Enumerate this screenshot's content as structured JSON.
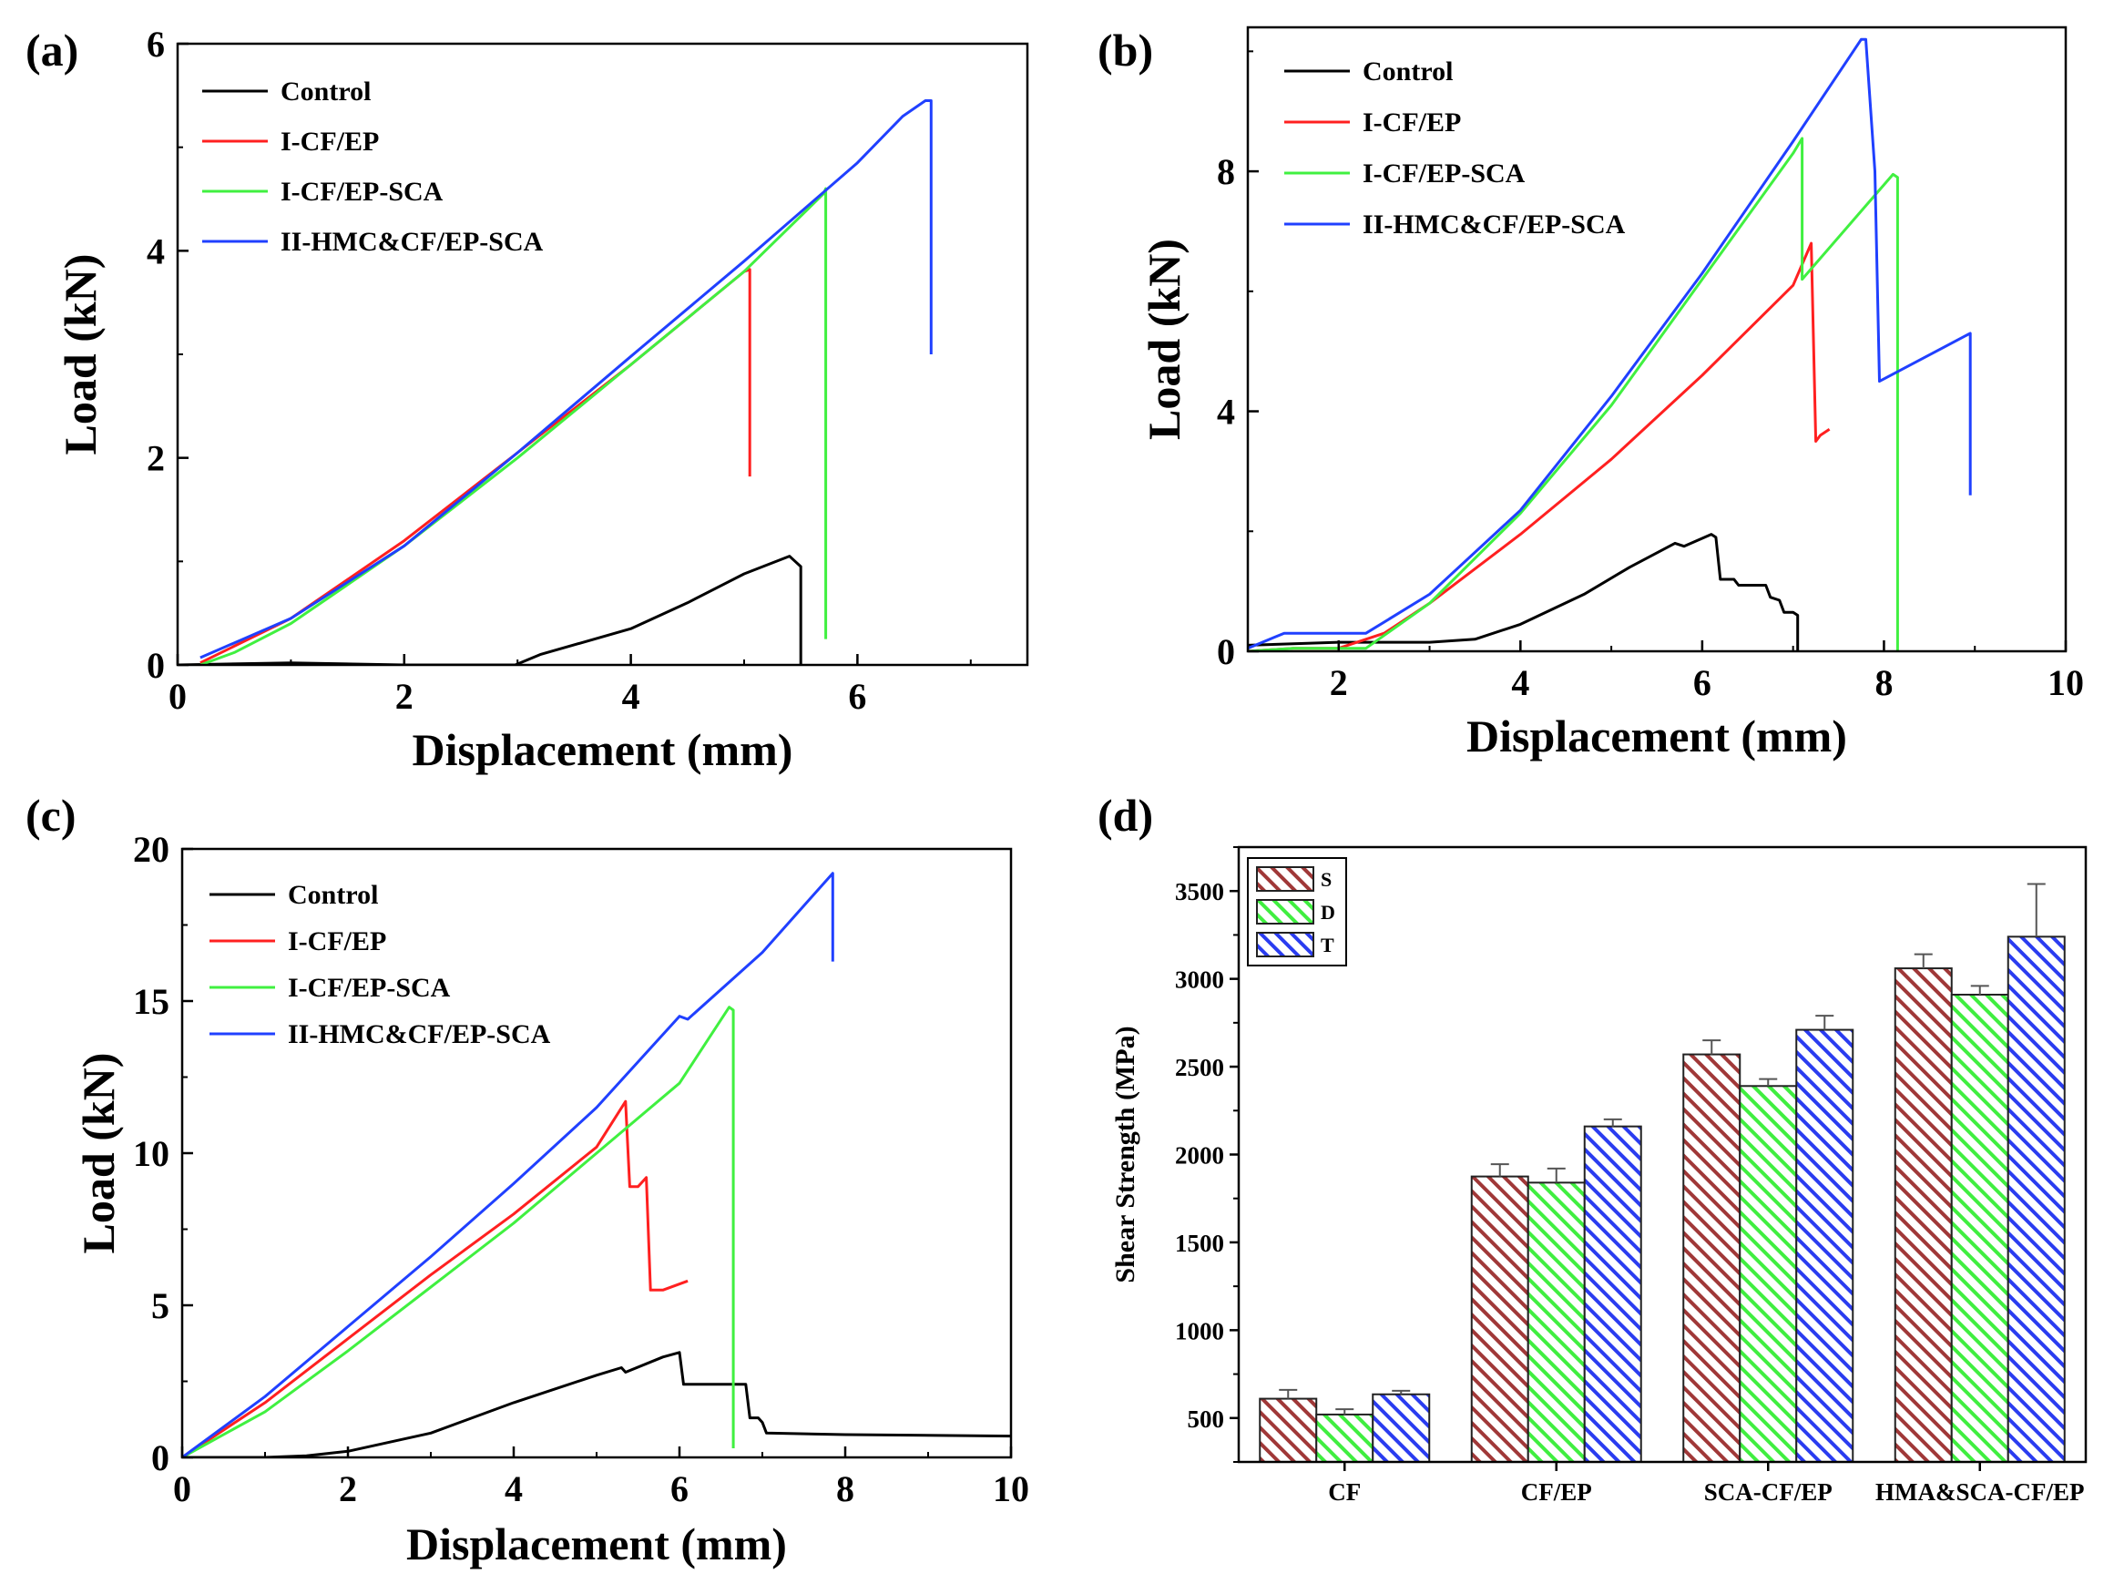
{
  "colors": {
    "Control": "#000000",
    "I-CF/EP": "#ff2020",
    "I-CF/EP-SCA": "#40f040",
    "II-HMC&CF/EP-SCA": "#2040ff",
    "S": "#a03838",
    "D": "#40ee40",
    "T": "#2a3cf0"
  },
  "chart_data": [
    {
      "panel": "(a)",
      "type": "line",
      "xlabel": "Displacement (mm)",
      "ylabel": "Load (kN)",
      "xlim": [
        0,
        7.5
      ],
      "ylim": [
        0,
        6
      ],
      "xticks": [
        0,
        2,
        4,
        6
      ],
      "yticks": [
        0,
        2,
        4,
        6
      ],
      "legend_position": "top-left",
      "series": [
        {
          "name": "Control",
          "x": [
            0,
            1,
            2,
            2.98,
            3.2,
            4,
            4.5,
            5.0,
            5.4,
            5.45,
            5.5,
            5.5
          ],
          "y": [
            0,
            0.02,
            0,
            0,
            0.1,
            0.35,
            0.6,
            0.88,
            1.05,
            1.0,
            0.95,
            0
          ]
        },
        {
          "name": "I-CF/EP",
          "x": [
            0.2,
            1,
            2,
            3,
            4,
            5.0,
            5.05,
            5.05
          ],
          "y": [
            0.02,
            0.45,
            1.2,
            2.05,
            2.9,
            3.8,
            3.82,
            1.82
          ]
        },
        {
          "name": "I-CF/EP-SCA",
          "x": [
            0.2,
            0.5,
            1,
            2,
            3,
            4,
            5,
            5.7,
            5.72,
            5.72
          ],
          "y": [
            0,
            0.12,
            0.4,
            1.15,
            2.0,
            2.9,
            3.8,
            4.55,
            4.6,
            0.25
          ]
        },
        {
          "name": "II-HMC&CF/EP-SCA",
          "x": [
            0.2,
            1,
            2,
            3,
            4,
            5,
            6,
            6.4,
            6.6,
            6.65,
            6.65
          ],
          "y": [
            0.07,
            0.45,
            1.15,
            2.05,
            2.98,
            3.9,
            4.85,
            5.3,
            5.45,
            5.45,
            3.0
          ]
        }
      ]
    },
    {
      "panel": "(b)",
      "type": "line",
      "xlabel": "Displacement (mm)",
      "ylabel": "Load (kN)",
      "xlim": [
        1,
        10
      ],
      "ylim": [
        0,
        10.4
      ],
      "xticks": [
        2,
        4,
        6,
        8,
        10
      ],
      "yticks": [
        0,
        4,
        8
      ],
      "legend_position": "top-left",
      "series": [
        {
          "name": "Control",
          "x": [
            1,
            2,
            3,
            3.5,
            4,
            4.7,
            5.2,
            5.7,
            5.8,
            6.1,
            6.15,
            6.2,
            6.35,
            6.4,
            6.7,
            6.75,
            6.85,
            6.9,
            7.0,
            7.05,
            7.05
          ],
          "y": [
            0.1,
            0.15,
            0.15,
            0.2,
            0.45,
            0.95,
            1.4,
            1.8,
            1.75,
            1.95,
            1.9,
            1.2,
            1.2,
            1.1,
            1.1,
            0.9,
            0.85,
            0.65,
            0.65,
            0.6,
            0
          ]
        },
        {
          "name": "I-CF/EP",
          "x": [
            1,
            1.5,
            2,
            2.5,
            3,
            4,
            5,
            6,
            7,
            7.2,
            7.25,
            7.3,
            7.4
          ],
          "y": [
            0,
            0.05,
            0.05,
            0.3,
            0.8,
            1.95,
            3.2,
            4.6,
            6.1,
            6.8,
            3.5,
            3.6,
            3.7
          ]
        },
        {
          "name": "I-CF/EP-SCA",
          "x": [
            1,
            1.5,
            2.3,
            3,
            4,
            5,
            6,
            7,
            7.1,
            7.1,
            8.1,
            8.15,
            8.15
          ],
          "y": [
            0,
            0.05,
            0.05,
            0.8,
            2.3,
            4.1,
            6.2,
            8.3,
            8.55,
            6.2,
            7.95,
            7.9,
            0
          ]
        },
        {
          "name": "II-HMC&CF/EP-SCA",
          "x": [
            1,
            1.4,
            2.3,
            3,
            4,
            5,
            6,
            7,
            7.75,
            7.8,
            7.9,
            7.95,
            8.95,
            8.95
          ],
          "y": [
            0.05,
            0.3,
            0.3,
            0.95,
            2.35,
            4.25,
            6.3,
            8.5,
            10.2,
            10.2,
            8.0,
            4.5,
            5.3,
            2.6
          ]
        }
      ]
    },
    {
      "panel": "(c)",
      "type": "line",
      "xlabel": "Displacement (mm)",
      "ylabel": "Load (kN)",
      "xlim": [
        0,
        10
      ],
      "ylim": [
        0,
        20
      ],
      "xticks": [
        0,
        2,
        4,
        6,
        8,
        10
      ],
      "yticks": [
        0,
        5,
        10,
        15,
        20
      ],
      "legend_position": "top-left",
      "series": [
        {
          "name": "Control",
          "x": [
            0,
            1,
            1.5,
            2,
            3,
            4,
            5,
            5.3,
            5.35,
            5.8,
            6.0,
            6.05,
            6.15,
            6.3,
            6.8,
            6.85,
            6.95,
            7.0,
            7.05,
            8,
            10
          ],
          "y": [
            0,
            0,
            0.05,
            0.2,
            0.8,
            1.8,
            2.7,
            2.95,
            2.8,
            3.3,
            3.45,
            2.4,
            2.4,
            2.4,
            2.4,
            1.3,
            1.3,
            1.15,
            0.8,
            0.75,
            0.7
          ]
        },
        {
          "name": "I-CF/EP",
          "x": [
            0,
            1,
            2,
            3,
            4,
            5,
            5.35,
            5.4,
            5.5,
            5.6,
            5.65,
            5.8,
            6.1
          ],
          "y": [
            0,
            1.8,
            3.9,
            6.0,
            8.0,
            10.2,
            11.7,
            8.9,
            8.9,
            9.2,
            5.5,
            5.5,
            5.8
          ]
        },
        {
          "name": "I-CF/EP-SCA",
          "x": [
            0,
            1,
            2,
            3,
            4,
            5,
            6,
            6.6,
            6.65,
            6.65
          ],
          "y": [
            0,
            1.5,
            3.5,
            5.6,
            7.7,
            10.0,
            12.3,
            14.8,
            14.7,
            0.3
          ]
        },
        {
          "name": "II-HMC&CF/EP-SCA",
          "x": [
            0,
            1,
            2,
            3,
            4,
            5,
            6,
            6.1,
            7,
            7.85,
            7.85
          ],
          "y": [
            0,
            2.0,
            4.3,
            6.6,
            9.0,
            11.5,
            14.5,
            14.4,
            16.6,
            19.2,
            16.3
          ]
        }
      ]
    },
    {
      "panel": "(d)",
      "type": "bar",
      "ylabel": "Shear Strength (MPa)",
      "ylim": [
        250,
        3750
      ],
      "yticks": [
        500,
        1000,
        1500,
        2000,
        2500,
        3000,
        3500
      ],
      "categories": [
        "CF",
        "CF/EP",
        "SCA-CF/EP",
        "HMA&SCA-CF/EP"
      ],
      "legend_position": "top-left",
      "series": [
        {
          "name": "S",
          "values": [
            610,
            1875,
            2570,
            3060
          ],
          "errors": [
            50,
            70,
            80,
            80
          ]
        },
        {
          "name": "D",
          "values": [
            520,
            1840,
            2390,
            2910
          ],
          "errors": [
            30,
            80,
            40,
            50
          ]
        },
        {
          "name": "T",
          "values": [
            635,
            2160,
            2710,
            3240
          ],
          "errors": [
            20,
            40,
            80,
            300
          ]
        }
      ]
    }
  ]
}
